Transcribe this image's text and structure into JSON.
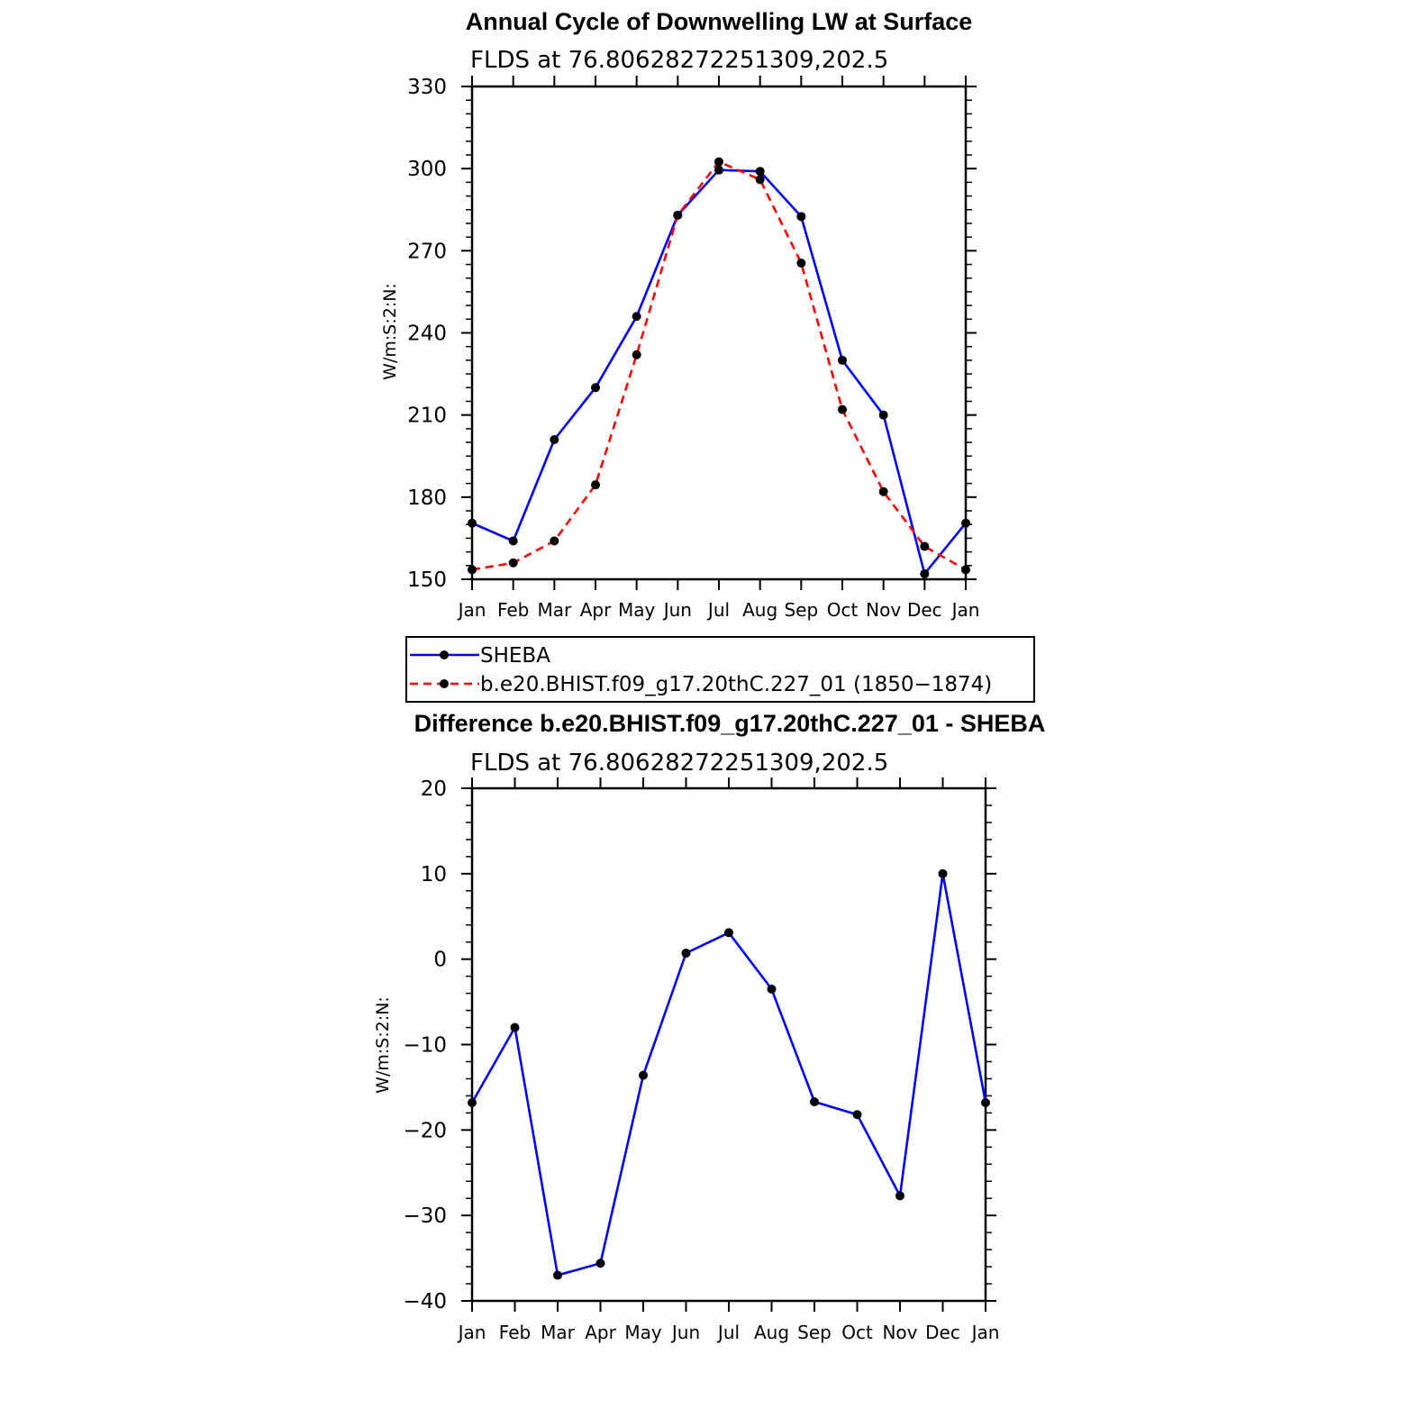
{
  "chart_data": [
    {
      "type": "line",
      "title": "Annual Cycle of Downwelling LW at Surface",
      "subtitle": "FLDS at 76.80628272251309,202.5",
      "ylabel": "W/m:S:2:N:",
      "xlabel": "",
      "categories": [
        "Jan",
        "Feb",
        "Mar",
        "Apr",
        "May",
        "Jun",
        "Jul",
        "Aug",
        "Sep",
        "Oct",
        "Nov",
        "Dec",
        "Jan"
      ],
      "ylim": [
        150,
        330
      ],
      "yticks": [
        "150",
        "180",
        "210",
        "240",
        "270",
        "300",
        "330"
      ],
      "grid": false,
      "legend_position": "below",
      "series": [
        {
          "name": "SHEBA",
          "color": "#0000ff",
          "style": "solid",
          "values": [
            170.5,
            164,
            201,
            220,
            246,
            283,
            299.5,
            299,
            282.5,
            230,
            210,
            152,
            170.5
          ]
        },
        {
          "name": "b.e20.BHIST.f09_g17.20thC.227_01 (1850−1874)",
          "color": "#ff0000",
          "style": "dashed",
          "values": [
            153.5,
            156,
            164,
            184.5,
            232,
            283,
            302.5,
            296,
            265.5,
            212,
            182,
            162,
            153.5
          ]
        }
      ]
    },
    {
      "type": "line",
      "title": "Difference b.e20.BHIST.f09_g17.20thC.227_01 - SHEBA",
      "subtitle": "FLDS at 76.80628272251309,202.5",
      "ylabel": "W/m:S:2:N:",
      "xlabel": "",
      "categories": [
        "Jan",
        "Feb",
        "Mar",
        "Apr",
        "May",
        "Jun",
        "Jul",
        "Aug",
        "Sep",
        "Oct",
        "Nov",
        "Dec",
        "Jan"
      ],
      "ylim": [
        -40,
        20
      ],
      "yticks": [
        "−40",
        "−30",
        "−20",
        "−10",
        "0",
        "10",
        "20"
      ],
      "grid": false,
      "series": [
        {
          "name": "",
          "color": "#0000ff",
          "style": "solid",
          "values": [
            -16.8,
            -8,
            -37,
            -35.6,
            -13.6,
            0.7,
            3.1,
            -3.5,
            -16.7,
            -18.2,
            -27.7,
            10,
            -16.8
          ]
        }
      ]
    }
  ]
}
